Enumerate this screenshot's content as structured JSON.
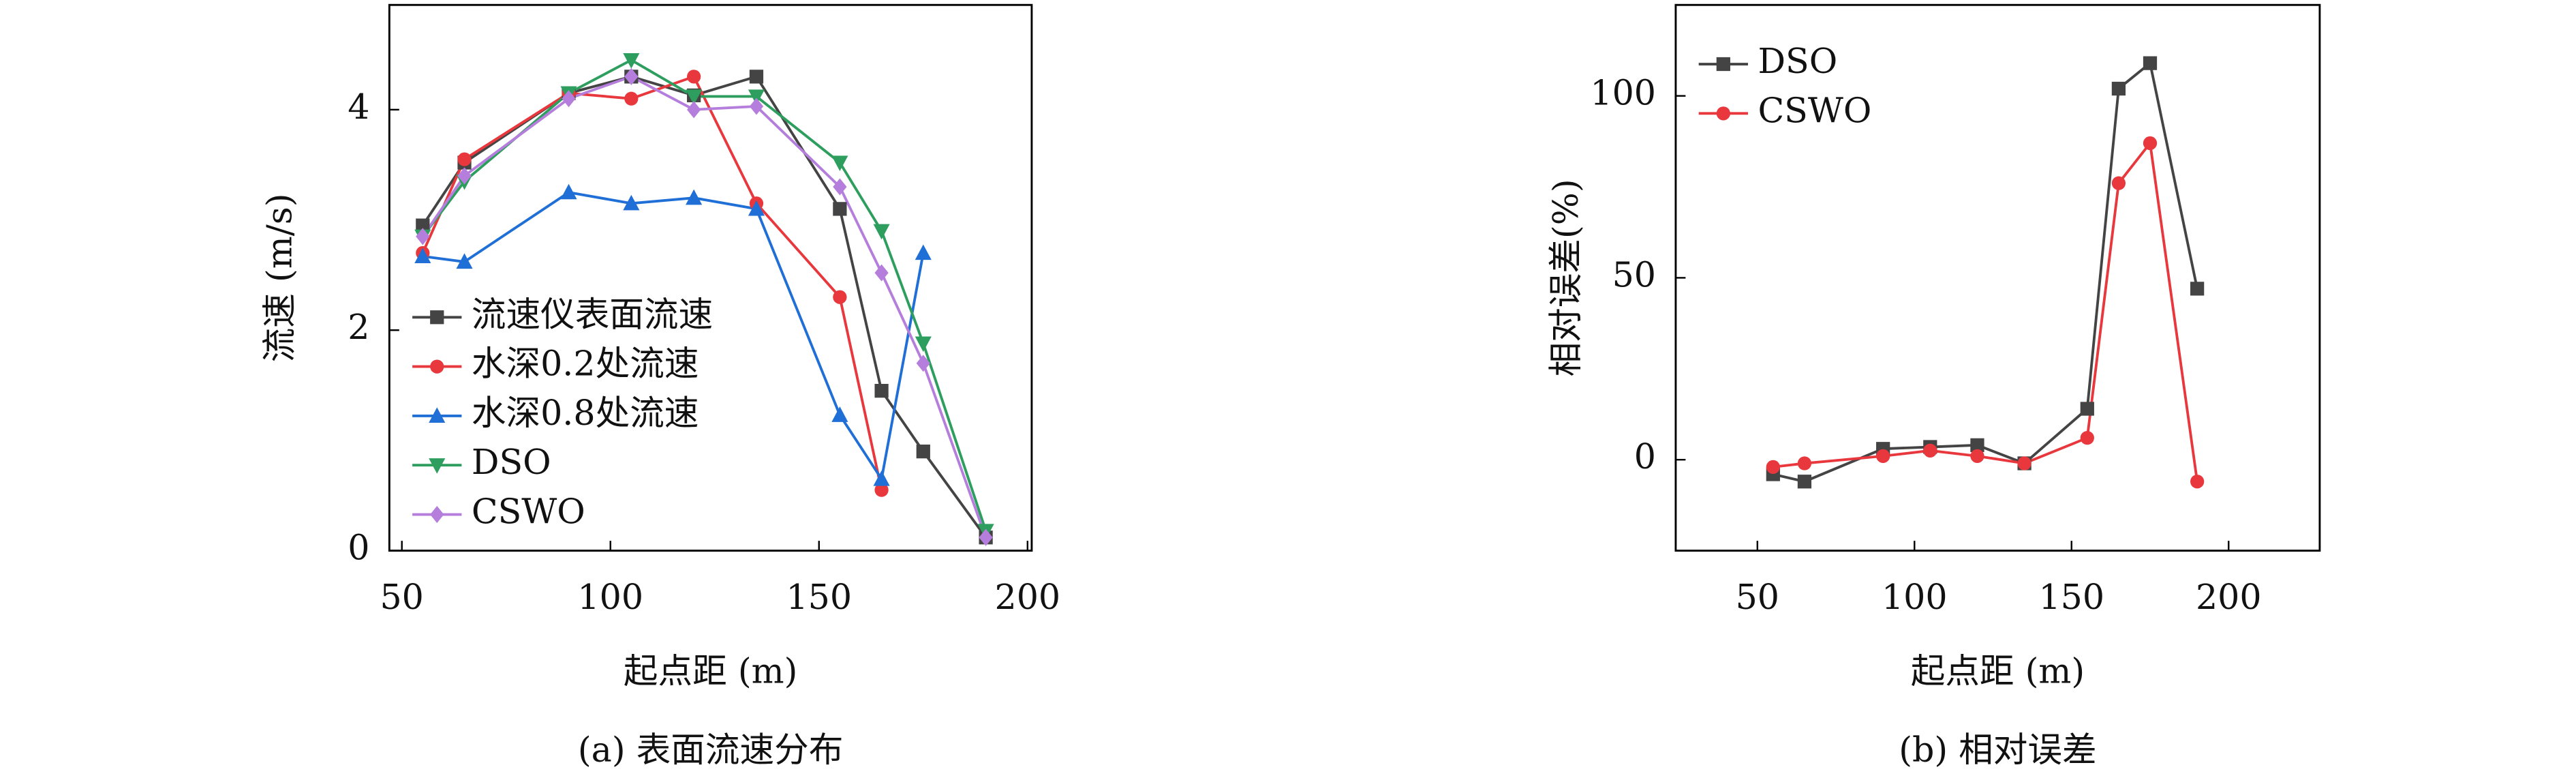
{
  "chart_data": [
    {
      "type": "line",
      "caption": "(a) 表面流速分布",
      "xlabel": "起点距 (m)",
      "ylabel": "流速 (m/s)",
      "x": [
        55,
        65,
        90,
        105,
        120,
        135,
        155,
        165,
        175,
        190
      ],
      "xlim": [
        47,
        201
      ],
      "xticks": [
        50,
        100,
        150,
        200
      ],
      "ylim": [
        0,
        4.95
      ],
      "yticks": [
        0,
        2,
        4
      ],
      "legend": "lower left",
      "series": [
        {
          "name": "流速仪表面流速",
          "color": "#444444",
          "marker": "square",
          "values": [
            2.95,
            3.52,
            4.15,
            4.3,
            4.13,
            4.3,
            3.1,
            1.45,
            0.9,
            0.12
          ]
        },
        {
          "name": "水深0.2处流速",
          "color": "#e8383d",
          "marker": "circle",
          "values": [
            2.7,
            3.55,
            4.15,
            4.1,
            4.3,
            3.15,
            2.3,
            0.55,
            null,
            null
          ]
        },
        {
          "name": "水深0.8处流速",
          "color": "#1f6fd6",
          "marker": "triangle-up",
          "values": [
            2.67,
            2.62,
            3.25,
            3.15,
            3.2,
            3.1,
            1.23,
            0.65,
            2.7,
            null
          ]
        },
        {
          "name": "DSO",
          "color": "#2e9e5e",
          "marker": "triangle-down",
          "values": [
            2.85,
            3.35,
            4.15,
            4.45,
            4.12,
            4.12,
            3.52,
            2.9,
            1.88,
            0.18
          ]
        },
        {
          "name": "CSWO",
          "color": "#b57edc",
          "marker": "diamond",
          "values": [
            2.85,
            3.4,
            4.1,
            4.3,
            4.0,
            4.03,
            3.3,
            2.52,
            1.7,
            0.12
          ]
        }
      ]
    },
    {
      "type": "line",
      "caption": "(b) 相对误差",
      "xlabel": "起点距 (m)",
      "ylabel": "相对误差(%)",
      "x": [
        55,
        65,
        90,
        105,
        120,
        135,
        155,
        165,
        175,
        190
      ],
      "xlim": [
        24,
        229
      ],
      "xticks": [
        50,
        100,
        150,
        200
      ],
      "ylim": [
        -25,
        125
      ],
      "yticks": [
        0,
        50,
        100
      ],
      "legend": "upper left",
      "series": [
        {
          "name": "DSO",
          "color": "#444444",
          "marker": "square",
          "values": [
            -4,
            -6,
            3,
            3.5,
            4,
            -1,
            14,
            102,
            109,
            47
          ]
        },
        {
          "name": "CSWO",
          "color": "#e8383d",
          "marker": "circle",
          "values": [
            -2,
            -1,
            1,
            2.5,
            1,
            -1,
            6,
            76,
            87,
            -6
          ]
        }
      ]
    }
  ]
}
